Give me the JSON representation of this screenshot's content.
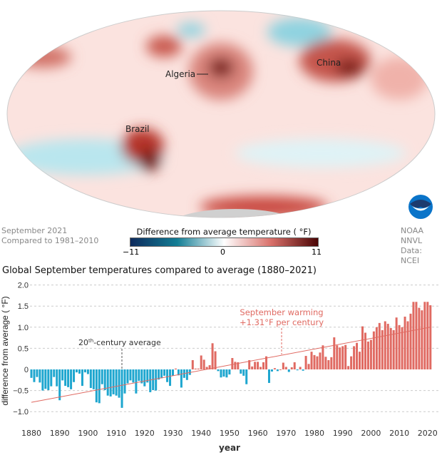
{
  "map": {
    "labels": {
      "algeria": "Algeria",
      "china": "China",
      "brazil": "Brazil"
    },
    "caption_line1": "September 2021",
    "caption_line2": "Compared to 1981–2010",
    "credit_line1": "NOAA NNVL",
    "credit_line2": "Data: NCEI",
    "logo_text": "NOAA",
    "legend": {
      "title": "Difference from average temperature ( °F)",
      "min": "−11",
      "mid": "0",
      "max": "11",
      "colors": [
        "#0d2a5c",
        "#137e95",
        "#ffffff",
        "#d9706a",
        "#4a0505"
      ]
    }
  },
  "chart_data": {
    "type": "bar",
    "title": "Global September temperatures compared to average (1880–2021)",
    "xlabel": "year",
    "ylabel": "difference from average ( °F)",
    "ylim": [
      -1.1,
      2.0
    ],
    "xlim": [
      1880,
      2021
    ],
    "yticks": [
      "−1.0",
      "−0.5",
      "0",
      "0.5",
      "1.0",
      "1.5",
      "2.0"
    ],
    "ytick_values": [
      -1.0,
      -0.5,
      0,
      0.5,
      1.0,
      1.5,
      2.0
    ],
    "xticks": [
      "1880",
      "1890",
      "1900",
      "1910",
      "1920",
      "1930",
      "1940",
      "1950",
      "1960",
      "1970",
      "1980",
      "1990",
      "2000",
      "2010",
      "2020"
    ],
    "grid": true,
    "colors": {
      "positive": "#e06a62",
      "negative": "#1ea6cf",
      "trend": "#e06a62"
    },
    "start_year": 1880,
    "values": [
      -0.2,
      -0.3,
      -0.18,
      -0.31,
      -0.5,
      -0.46,
      -0.49,
      -0.4,
      -0.18,
      -0.4,
      -0.73,
      -0.26,
      -0.39,
      -0.42,
      -0.47,
      -0.3,
      -0.07,
      -0.1,
      -0.39,
      -0.07,
      -0.11,
      -0.44,
      -0.47,
      -0.78,
      -0.8,
      -0.35,
      -0.49,
      -0.62,
      -0.64,
      -0.59,
      -0.62,
      -0.67,
      -0.91,
      -0.57,
      -0.33,
      -0.26,
      -0.31,
      -0.57,
      -0.27,
      -0.33,
      -0.4,
      -0.31,
      -0.54,
      -0.49,
      -0.5,
      -0.24,
      -0.21,
      -0.15,
      -0.3,
      -0.39,
      -0.15,
      0.02,
      -0.14,
      -0.43,
      -0.2,
      -0.25,
      -0.13,
      0.22,
      0.02,
      0.02,
      0.33,
      0.23,
      0.06,
      0.1,
      0.62,
      0.43,
      -0.04,
      -0.19,
      -0.17,
      -0.19,
      -0.12,
      0.27,
      0.18,
      0.17,
      -0.1,
      -0.15,
      -0.35,
      0.22,
      0.07,
      0.18,
      0.18,
      0.06,
      0.17,
      0.31,
      -0.32,
      -0.05,
      0.03,
      -0.04,
      0.0,
      0.16,
      0.06,
      -0.06,
      0.05,
      0.17,
      -0.02,
      0.06,
      -0.03,
      0.32,
      0.13,
      0.42,
      0.34,
      0.31,
      0.4,
      0.57,
      0.3,
      0.22,
      0.29,
      0.76,
      0.57,
      0.52,
      0.55,
      0.58,
      0.08,
      0.31,
      0.55,
      0.63,
      0.42,
      1.02,
      0.87,
      0.66,
      0.7,
      0.9,
      1.0,
      1.1,
      0.93,
      1.14,
      1.08,
      0.98,
      0.93,
      1.23,
      1.05,
      1.0,
      1.25,
      1.14,
      1.32,
      1.6,
      1.6,
      1.46,
      1.4,
      1.6,
      1.6,
      1.52
    ],
    "trend": {
      "start": [
        1880,
        -0.78
      ],
      "end": [
        2021,
        1.0
      ]
    },
    "annotations": {
      "baseline_label_prefix": "20",
      "baseline_label_sup": "th",
      "baseline_label_suffix": "-century average",
      "trend_line1": "September warming",
      "trend_line2": "+1.31°F per century"
    }
  }
}
